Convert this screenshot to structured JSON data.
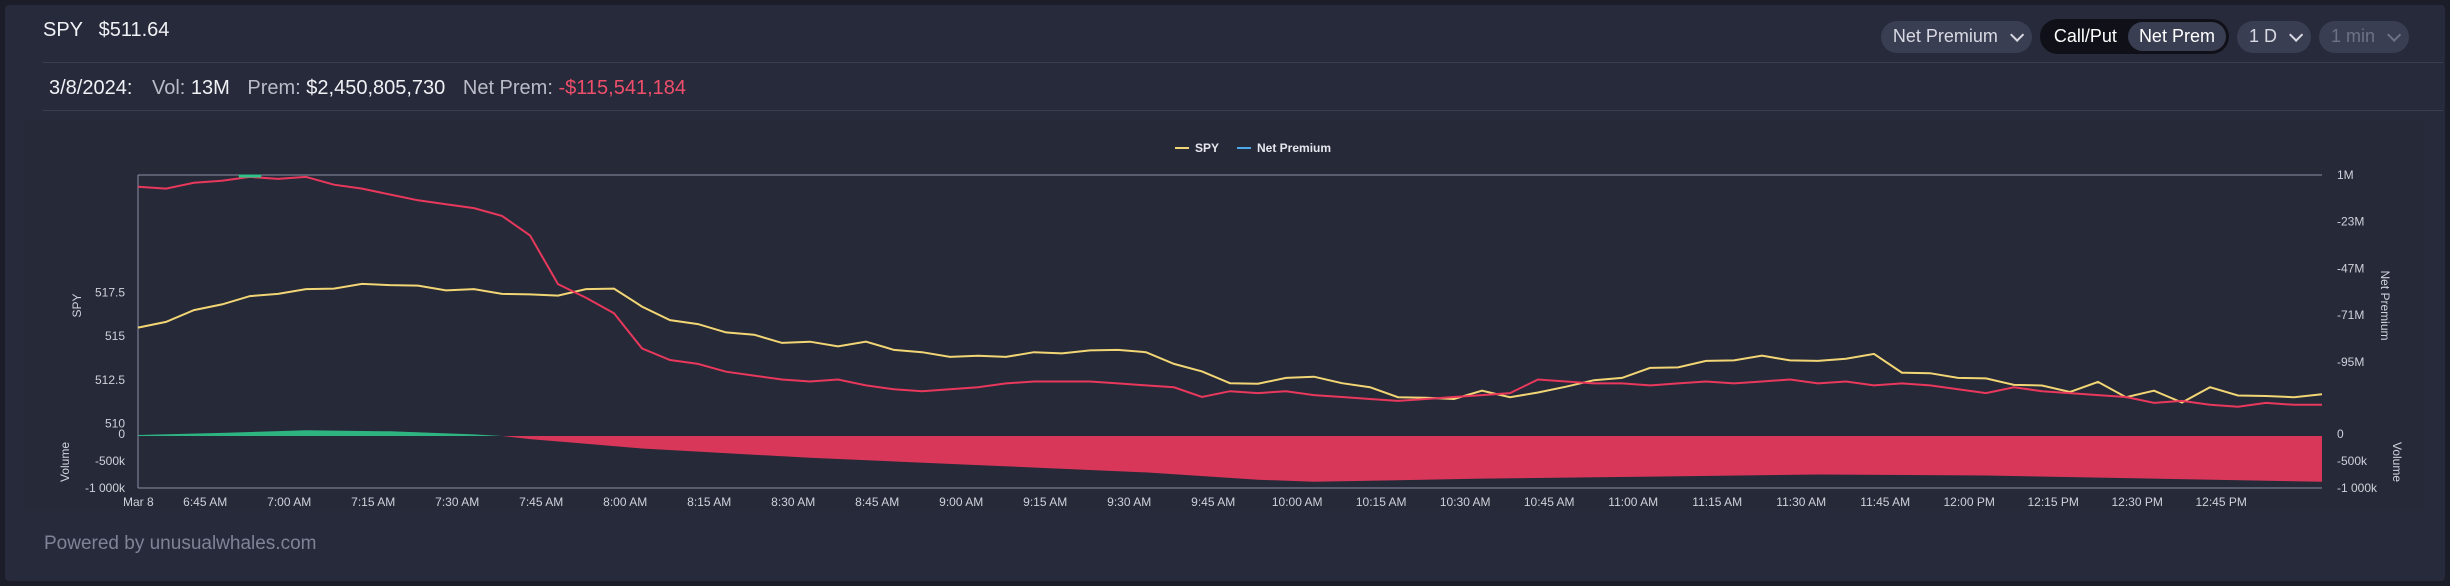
{
  "header": {
    "ticker": "SPY",
    "price": "$511.64",
    "metric_select": "Net Premium",
    "toggle_options": [
      "Call/Put",
      "Net Prem"
    ],
    "toggle_active": "Net Prem",
    "period_select": "1 D",
    "interval_select": "1 min"
  },
  "stats": {
    "date": "3/8/2024:",
    "vol_label": "Vol:",
    "vol_value": "13M",
    "prem_label": "Prem:",
    "prem_value": "$2,450,805,730",
    "net_prem_label": "Net Prem:",
    "net_prem_value": "-$115,541,184"
  },
  "footer": {
    "text": "Powered by unusualwhales.com"
  },
  "colors": {
    "spy_line": "#f2d675",
    "net_prem_negative": "#e8385c",
    "net_prem_positive": "#2fc38a",
    "legend_net_premium": "#4ea7e8",
    "bg": "#272a3b"
  },
  "chart_data": {
    "type": "line",
    "legend": [
      "SPY",
      "Net Premium"
    ],
    "x_ticks": [
      "Mar 8",
      "6:45 AM",
      "7:00 AM",
      "7:15 AM",
      "7:30 AM",
      "7:45 AM",
      "8:00 AM",
      "8:15 AM",
      "8:30 AM",
      "8:45 AM",
      "9:00 AM",
      "9:15 AM",
      "9:30 AM",
      "9:45 AM",
      "10:00 AM",
      "10:15 AM",
      "10:30 AM",
      "10:45 AM",
      "11:00 AM",
      "11:15 AM",
      "11:30 AM",
      "11:45 AM",
      "12:00 PM",
      "12:15 PM",
      "12:30 PM",
      "12:45 PM"
    ],
    "x_range_minutes": [
      0,
      390
    ],
    "left_axis": {
      "label": "SPY",
      "ticks": [
        "517.5",
        "515",
        "512.5",
        "510"
      ],
      "tick_values": [
        517.5,
        515,
        512.5,
        510
      ],
      "range": [
        509.3,
        524.2
      ]
    },
    "right_axis": {
      "label": "Net Premium",
      "ticks": [
        "1M",
        "-23M",
        "-47M",
        "-71M",
        "-95M"
      ],
      "tick_values": [
        1,
        -23,
        -47,
        -71,
        -95
      ],
      "range": [
        -133,
        1
      ]
    },
    "volume_left": {
      "label": "Volume",
      "ticks": [
        "0",
        "-500k",
        "-1 000k"
      ]
    },
    "volume_right": {
      "label": "Volume",
      "ticks": [
        "0",
        "-500k",
        "-1 000k"
      ]
    },
    "series": [
      {
        "name": "SPY",
        "x": [
          0,
          5,
          10,
          15,
          20,
          25,
          30,
          35,
          40,
          45,
          50,
          55,
          60,
          65,
          70,
          75,
          80,
          85,
          90,
          95,
          100,
          105,
          110,
          115,
          120,
          125,
          130,
          135,
          140,
          145,
          150,
          155,
          160,
          165,
          170,
          175,
          180,
          185,
          190,
          195,
          200,
          205,
          210,
          215,
          220,
          225,
          230,
          235,
          240,
          245,
          250,
          255,
          260,
          265,
          270,
          275,
          280,
          285,
          290,
          295,
          300,
          305,
          310,
          315,
          320,
          325,
          330,
          335,
          340,
          345,
          350,
          355,
          360,
          365,
          370,
          375,
          380,
          385,
          390
        ],
        "values": [
          515.4,
          515.9,
          516.4,
          516.9,
          517.2,
          517.5,
          517.6,
          517.8,
          517.9,
          518.0,
          517.8,
          517.7,
          517.6,
          517.5,
          517.3,
          517.4,
          517.6,
          517.8,
          516.6,
          516.0,
          515.6,
          515.3,
          515.0,
          514.7,
          514.6,
          514.5,
          514.6,
          514.3,
          514.0,
          513.9,
          513.8,
          513.9,
          514.0,
          514.1,
          514.1,
          514.3,
          514.0,
          513.5,
          512.9,
          512.4,
          512.2,
          512.7,
          512.6,
          512.4,
          512.0,
          511.6,
          511.4,
          511.5,
          511.8,
          511.6,
          511.7,
          512.2,
          512.4,
          512.7,
          513.1,
          513.3,
          513.5,
          513.7,
          513.8,
          513.7,
          513.5,
          513.8,
          513.9,
          513.0,
          512.8,
          512.7,
          512.5,
          512.3,
          512.1,
          511.9,
          512.3,
          511.6,
          511.8,
          511.3,
          512.0,
          511.7,
          511.5,
          511.6,
          511.6
        ]
      },
      {
        "name": "Net Premium",
        "x": [
          0,
          5,
          10,
          15,
          20,
          25,
          30,
          35,
          40,
          45,
          50,
          55,
          60,
          65,
          70,
          75,
          80,
          85,
          90,
          95,
          100,
          105,
          110,
          115,
          120,
          125,
          130,
          135,
          140,
          145,
          150,
          155,
          160,
          165,
          170,
          175,
          180,
          185,
          190,
          195,
          200,
          205,
          210,
          215,
          220,
          225,
          230,
          235,
          240,
          245,
          250,
          255,
          260,
          265,
          270,
          275,
          280,
          285,
          290,
          295,
          300,
          305,
          310,
          315,
          320,
          325,
          330,
          335,
          340,
          345,
          350,
          355,
          360,
          365,
          370,
          375,
          380,
          385,
          390
        ],
        "values": [
          -5,
          -6,
          -3,
          -2,
          0,
          -1,
          0,
          -4,
          -6,
          -9,
          -12,
          -14,
          -16,
          -20,
          -30,
          -55,
          -62,
          -70,
          -88,
          -94,
          -96,
          -100,
          -102,
          -104,
          -105,
          -104,
          -107,
          -109,
          -110,
          -109,
          -108,
          -106,
          -105,
          -105,
          -105,
          -106,
          -107,
          -108,
          -113,
          -110,
          -111,
          -110,
          -112,
          -113,
          -114,
          -115,
          -114,
          -113,
          -112,
          -111,
          -104,
          -105,
          -106,
          -106,
          -107,
          -106,
          -105,
          -106,
          -105,
          -104,
          -106,
          -105,
          -107,
          -106,
          -107,
          -109,
          -111,
          -108,
          -110,
          -111,
          -112,
          -113,
          -116,
          -115,
          -117,
          -118,
          -116,
          -117,
          -117
        ]
      },
      {
        "name": "Volume",
        "x": [
          0,
          15,
          30,
          45,
          60,
          65,
          70,
          80,
          90,
          120,
          150,
          180,
          200,
          210,
          240,
          270,
          300,
          330,
          360,
          390
        ],
        "values": [
          20,
          60,
          110,
          90,
          30,
          0,
          -60,
          -150,
          -240,
          -420,
          -560,
          -700,
          -840,
          -880,
          -820,
          -780,
          -740,
          -760,
          -820,
          -880
        ]
      }
    ]
  }
}
